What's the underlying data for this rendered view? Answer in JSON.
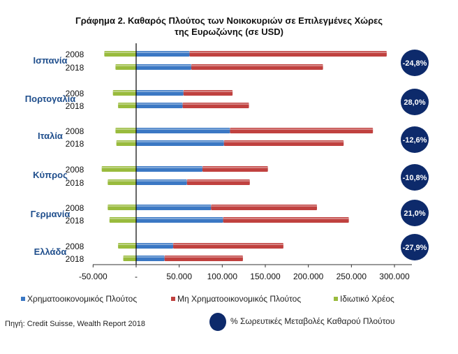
{
  "chart_data": {
    "type": "bar",
    "orientation": "horizontal-stacked",
    "title": "Γράφημα 2. Καθαρός Πλούτος των Νοικοκυριών σε Επιλεγμένες Χώρες",
    "subtitle": "της Ευρωζώνης (σε USD)",
    "xlim": [
      -50000,
      300000
    ],
    "xticks": [
      -50000,
      0,
      50000,
      100000,
      150000,
      200000,
      250000,
      300000
    ],
    "xtick_labels": [
      "-50.000",
      "-",
      "50.000",
      "100.000",
      "150.000",
      "200.000",
      "250.000",
      "300.000"
    ],
    "series_names": [
      "Χρηματοοικονομικός  Πλούτος",
      "Μη Χρηματοοικονομικός  Πλούτος",
      "Ιδιωτικό  Χρέος"
    ],
    "colors": {
      "financial": "#3b78c4",
      "nonfinancial": "#c0413f",
      "debt": "#99bb3d",
      "circle": "#0d2a6b",
      "country": "#1f4e8c"
    },
    "groups": [
      {
        "country": "Ισπανία",
        "change": "-24,8%",
        "rows": [
          {
            "year": "2008",
            "financial": 62000,
            "nonfinancial": 229000,
            "debt": -37000
          },
          {
            "year": "2018",
            "financial": 64000,
            "nonfinancial": 153000,
            "debt": -24000
          }
        ]
      },
      {
        "country": "Πορτογαλία",
        "change": "28,0%",
        "rows": [
          {
            "year": "2008",
            "financial": 55000,
            "nonfinancial": 57000,
            "debt": -27000
          },
          {
            "year": "2018",
            "financial": 54000,
            "nonfinancial": 77000,
            "debt": -21000
          }
        ]
      },
      {
        "country": "Ιταλία",
        "change": "-12,6%",
        "rows": [
          {
            "year": "2008",
            "financial": 109000,
            "nonfinancial": 166000,
            "debt": -24000
          },
          {
            "year": "2018",
            "financial": 102000,
            "nonfinancial": 139000,
            "debt": -23000
          }
        ]
      },
      {
        "country": "Κύπρος",
        "change": "-10,8%",
        "rows": [
          {
            "year": "2008",
            "financial": 77000,
            "nonfinancial": 76000,
            "debt": -40000
          },
          {
            "year": "2018",
            "financial": 59000,
            "nonfinancial": 73000,
            "debt": -33000
          }
        ]
      },
      {
        "country": "Γερμανία",
        "change": "21,0%",
        "rows": [
          {
            "year": "2008",
            "financial": 87000,
            "nonfinancial": 123000,
            "debt": -33000
          },
          {
            "year": "2018",
            "financial": 101000,
            "nonfinancial": 146000,
            "debt": -31000
          }
        ]
      },
      {
        "country": "Ελλάδα",
        "change": "-27,9%",
        "rows": [
          {
            "year": "2008",
            "financial": 43000,
            "nonfinancial": 128000,
            "debt": -21000
          },
          {
            "year": "2018",
            "financial": 33000,
            "nonfinancial": 91000,
            "debt": -15000
          }
        ]
      }
    ],
    "circle_legend": "% Σωρευτικές Μεταβολές  Καθαρού Πλούτου",
    "source": "Πηγή: Credit Suisse, Wealth Report 2018"
  }
}
